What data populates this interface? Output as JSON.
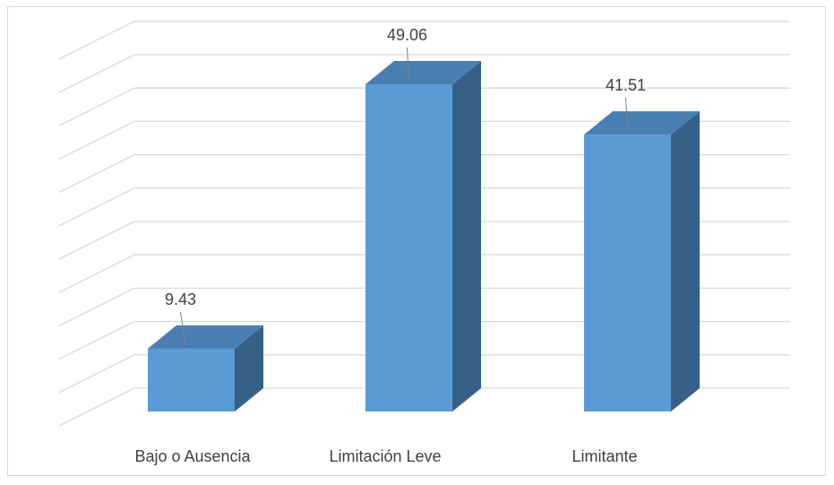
{
  "chart_data": {
    "type": "bar",
    "style": "3d-column",
    "categories": [
      "Bajo o Ausencia",
      "Limitación Leve",
      "Limitante"
    ],
    "values": [
      9.43,
      49.06,
      41.51
    ],
    "data_labels": [
      "9.43",
      "49.06",
      "41.51"
    ],
    "title": "",
    "xlabel": "",
    "ylabel": "",
    "ylim": [
      0,
      55
    ],
    "grid": true,
    "legend": "none",
    "colors": {
      "bar_front": "#5b9bd5",
      "bar_top": "#4a7fb3",
      "bar_side": "#376089",
      "grid": "#d9d9d9",
      "text": "#404040"
    }
  }
}
